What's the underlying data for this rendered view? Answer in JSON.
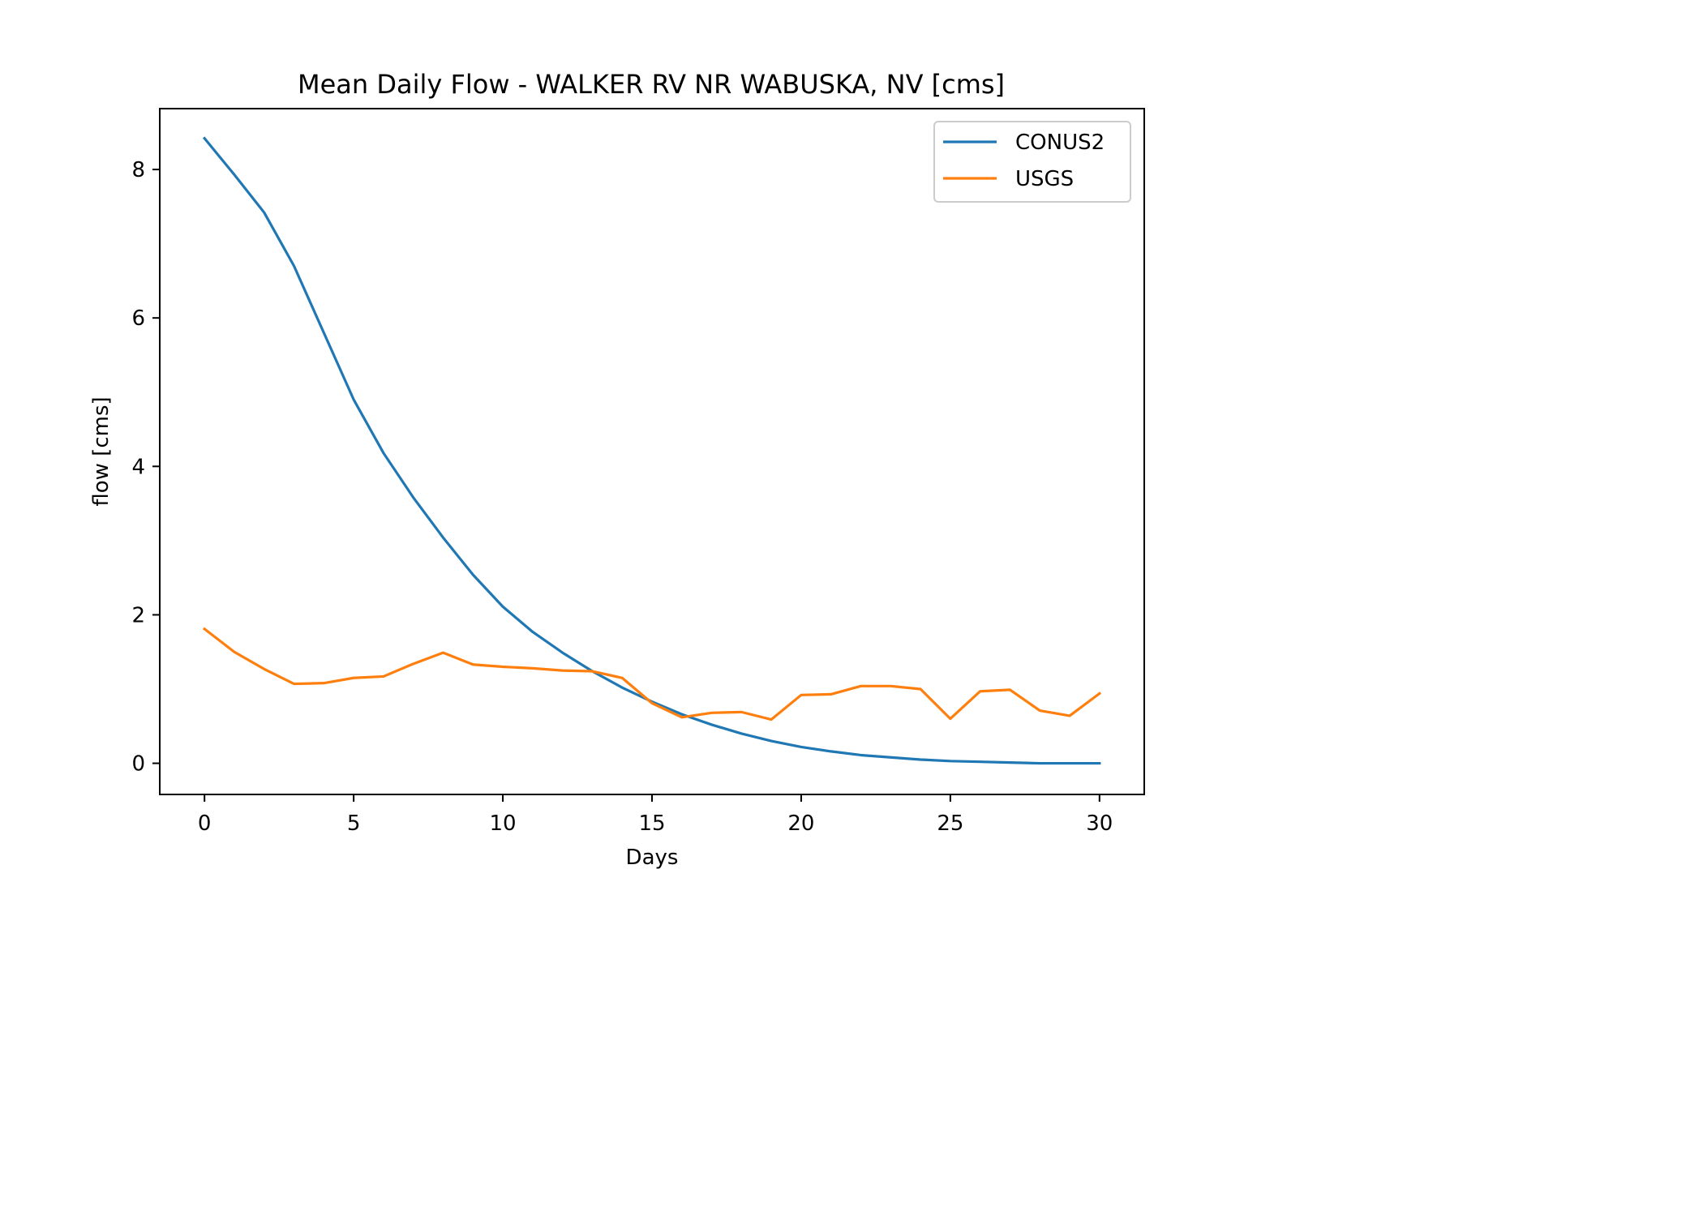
{
  "chart_data": {
    "type": "line",
    "title": "Mean Daily Flow - WALKER RV NR WABUSKA, NV [cms]",
    "xlabel": "Days",
    "ylabel": "flow [cms]",
    "xlim": [
      -1.5,
      31.5
    ],
    "ylim": [
      -0.42,
      8.82
    ],
    "xticks": [
      0,
      5,
      10,
      15,
      20,
      25,
      30
    ],
    "yticks": [
      0,
      2,
      4,
      6,
      8
    ],
    "grid": false,
    "legend_position": "upper right",
    "x": [
      0,
      1,
      2,
      3,
      4,
      5,
      6,
      7,
      8,
      9,
      10,
      11,
      12,
      13,
      14,
      15,
      16,
      17,
      18,
      19,
      20,
      21,
      22,
      23,
      24,
      25,
      26,
      27,
      28,
      29,
      30
    ],
    "series": [
      {
        "name": "CONUS2",
        "color": "#1f77b4",
        "values": [
          8.42,
          7.93,
          7.42,
          6.7,
          5.8,
          4.9,
          4.18,
          3.58,
          3.04,
          2.54,
          2.11,
          1.77,
          1.49,
          1.24,
          1.02,
          0.83,
          0.66,
          0.52,
          0.4,
          0.3,
          0.22,
          0.16,
          0.11,
          0.08,
          0.05,
          0.03,
          0.02,
          0.01,
          0.0,
          0.0,
          0.0
        ]
      },
      {
        "name": "USGS",
        "color": "#ff7f0e",
        "values": [
          1.81,
          1.5,
          1.27,
          1.07,
          1.08,
          1.15,
          1.17,
          1.34,
          1.49,
          1.33,
          1.3,
          1.28,
          1.25,
          1.24,
          1.15,
          0.81,
          0.62,
          0.68,
          0.69,
          0.59,
          0.92,
          0.93,
          1.04,
          1.04,
          1.0,
          0.6,
          0.97,
          0.99,
          0.71,
          0.64,
          0.94
        ]
      }
    ]
  }
}
